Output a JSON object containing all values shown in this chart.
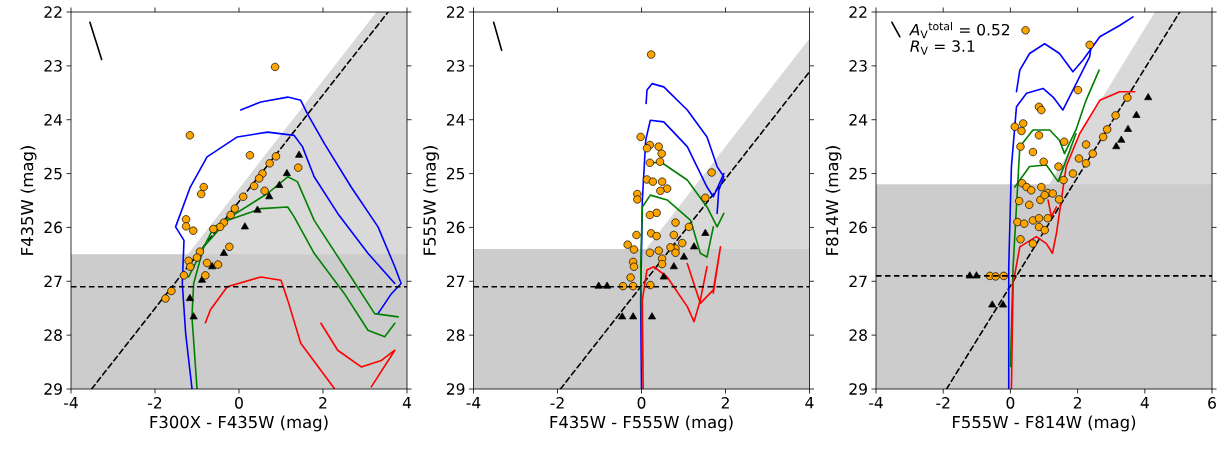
{
  "chart_data": [
    {
      "type": "scatter",
      "xlabel": "F300X - F435W (mag)",
      "ylabel": "F435W (mag)",
      "xlim": [
        -4,
        4
      ],
      "ylim": [
        29,
        22
      ],
      "xticks": [
        -4,
        -2,
        0,
        2,
        4
      ],
      "yticks": [
        22,
        23,
        24,
        25,
        26,
        27,
        28,
        29
      ],
      "bands": [
        {
          "axis": "y",
          "from": 26.5,
          "to": 29,
          "color": "#cccccc"
        }
      ],
      "ref_lines": [
        {
          "axis": "y",
          "value": 27.1,
          "color": "#000000",
          "line_style": "dashed"
        }
      ],
      "series": [
        {
          "type": "area",
          "color": "#d9d9d9",
          "x": [
            -3.71,
            3.27,
            4,
            4
          ],
          "values": [
            29,
            22,
            22,
            29
          ]
        },
        {
          "type": "line",
          "color": "#000000",
          "line_style": "dashed",
          "x": [
            -3.51,
            3.55
          ],
          "values": [
            29,
            22
          ]
        },
        {
          "type": "line",
          "color": "#000000",
          "x": [
            -3.55,
            -3.27
          ],
          "values": [
            22.19,
            22.88
          ]
        },
        {
          "type": "line",
          "color": "#0000ff",
          "x": [
            0.04,
            0.52,
            1.16,
            1.47,
            1.63,
            2.03,
            2.67,
            3.31,
            3.71,
            3.86,
            3.63,
            3.31
          ],
          "values": [
            23.82,
            23.67,
            23.58,
            23.64,
            23.89,
            24.44,
            25.25,
            25.99,
            26.73,
            27.04,
            27.23,
            27.6
          ]
        },
        {
          "type": "line",
          "color": "#0000ff",
          "x": [
            -1.12,
            -1.27,
            -1.35,
            -1.31,
            -1.51,
            -1.16,
            -0.76,
            -0.04,
            0.68,
            1.31,
            1.51,
            1.79,
            2.35,
            3.07,
            3.71
          ],
          "values": [
            28.99,
            27.97,
            27.04,
            26.24,
            25.99,
            25.25,
            24.69,
            24.32,
            24.23,
            24.29,
            24.5,
            25.06,
            25.74,
            26.48,
            27.04
          ]
        },
        {
          "type": "line",
          "color": "#008000",
          "x": [
            -1.0,
            -1.12,
            -1.08,
            -0.84,
            -0.28,
            0.52,
            1.16,
            1.31,
            1.79,
            2.51,
            3.07,
            3.47,
            3.71
          ],
          "values": [
            28.99,
            27.66,
            27.04,
            26.36,
            25.87,
            25.65,
            25.62,
            25.8,
            26.48,
            27.23,
            27.91,
            28.03,
            27.78
          ]
        },
        {
          "type": "line",
          "color": "#008000",
          "x": [
            -1.2,
            -0.6,
            0.68,
            1.16,
            1.39,
            1.79,
            2.51,
            3.23,
            3.79
          ],
          "values": [
            26.92,
            26.0,
            25.37,
            25.06,
            25.15,
            25.87,
            26.73,
            27.6,
            27.66
          ]
        },
        {
          "type": "line",
          "color": "#ff0000",
          "x": [
            2.27,
            1.47,
            1.16,
            1.0,
            0.52,
            -0.28,
            -0.68,
            -0.8
          ],
          "values": [
            28.99,
            28.15,
            27.35,
            26.98,
            26.92,
            27.1,
            27.53,
            27.77
          ]
        },
        {
          "type": "line",
          "color": "#ff0000",
          "x": [
            1.95,
            2.35,
            2.91,
            3.39,
            3.71,
            3.15
          ],
          "values": [
            27.78,
            28.28,
            28.59,
            28.47,
            28.28,
            28.96
          ]
        },
        {
          "type": "scatter",
          "color": "#000000",
          "marker": "triangle",
          "x": [
            1.43,
            1.14,
            0.96,
            0.72,
            0.44,
            0.14,
            -0.36,
            -0.64,
            -0.88,
            -1.08,
            -1.17
          ],
          "values": [
            24.66,
            25.0,
            25.22,
            25.43,
            25.68,
            25.99,
            26.48,
            26.73,
            26.98,
            27.66,
            27.32
          ]
        },
        {
          "type": "scatter",
          "color": "#ffa500",
          "marker": "circle",
          "x": [
            0.86,
            -1.17,
            0.26,
            0.88,
            0.73,
            1.41,
            0.56,
            0.48,
            0.36,
            0.61,
            -0.84,
            -0.9,
            0.1,
            -0.1,
            -0.2,
            -0.36,
            -0.45,
            -0.61,
            -1.26,
            -1.26,
            -1.09,
            -0.23,
            -0.93,
            -1.0,
            -1.2,
            -0.76,
            -0.5,
            -1.16,
            -1.31,
            -0.8,
            -1.61,
            -1.75
          ],
          "values": [
            23.02,
            24.29,
            24.66,
            24.68,
            24.81,
            24.89,
            25.0,
            25.09,
            25.23,
            25.32,
            25.25,
            25.38,
            25.43,
            25.65,
            25.77,
            25.91,
            25.99,
            26.03,
            25.85,
            25.98,
            26.06,
            26.36,
            26.45,
            26.56,
            26.62,
            26.66,
            26.69,
            26.73,
            26.89,
            26.89,
            27.18,
            27.32
          ]
        }
      ]
    },
    {
      "type": "scatter",
      "xlabel": "F435W - F555W (mag)",
      "ylabel": "F555W (mag)",
      "xlim": [
        -4,
        4
      ],
      "ylim": [
        29,
        22
      ],
      "xticks": [
        -4,
        -2,
        0,
        2,
        4
      ],
      "yticks": [
        22,
        23,
        24,
        25,
        26,
        27,
        28,
        29
      ],
      "bands": [
        {
          "axis": "y",
          "from": 26.4,
          "to": 29,
          "color": "#cccccc"
        }
      ],
      "ref_lines": [
        {
          "axis": "y",
          "value": 27.1,
          "color": "#000000",
          "line_style": "dashed"
        }
      ],
      "series": [
        {
          "type": "area",
          "color": "#d9d9d9",
          "x": [
            -2.48,
            4,
            4
          ],
          "values": [
            29,
            22.49,
            29
          ]
        },
        {
          "type": "line",
          "color": "#000000",
          "line_style": "dashed",
          "x": [
            -1.93,
            4
          ],
          "values": [
            29,
            23.11
          ]
        },
        {
          "type": "line",
          "color": "#000000",
          "x": [
            -3.52,
            -3.33
          ],
          "values": [
            22.19,
            22.71
          ]
        },
        {
          "type": "line",
          "color": "#0000ff",
          "x": [
            0.11,
            0.13,
            0.25,
            0.53,
            1.09,
            1.56,
            1.8,
            1.96,
            1.84,
            1.8
          ],
          "values": [
            23.7,
            23.45,
            23.33,
            23.39,
            23.82,
            24.32,
            24.87,
            25.06,
            25.31,
            25.74
          ]
        },
        {
          "type": "line",
          "color": "#0000ff",
          "x": [
            0,
            -0.02,
            0.02,
            0.1,
            0.21,
            0.53,
            1.09,
            1.56,
            1.71,
            1.96
          ],
          "values": [
            29,
            27.35,
            25.49,
            24.38,
            24.01,
            24.04,
            24.5,
            25.25,
            25.43,
            25.0
          ]
        },
        {
          "type": "line",
          "color": "#008000",
          "x": [
            0.21,
            0.45,
            1.09,
            1.56,
            1.8,
            1.96
          ],
          "values": [
            24.81,
            24.78,
            25.12,
            25.62,
            25.99,
            25.74
          ]
        },
        {
          "type": "line",
          "color": "#008000",
          "x": [
            0.02,
            -0.02,
            0.02,
            0.21,
            0.61,
            1.17,
            1.4,
            1.56,
            1.71
          ],
          "values": [
            28.58,
            26.73,
            25.62,
            25.4,
            25.49,
            25.87,
            26.48,
            26.55,
            25.99
          ]
        },
        {
          "type": "line",
          "color": "#ff0000",
          "x": [
            0.04,
            0.02,
            0.13,
            0.29,
            0.61,
            1.09,
            1.25,
            1.4,
            1.56
          ],
          "values": [
            29,
            27.35,
            26.79,
            26.73,
            26.92,
            27.47,
            27.75,
            27.35,
            26.73
          ]
        },
        {
          "type": "line",
          "color": "#ff0000",
          "x": [
            1.09,
            1.4,
            1.71,
            1.88,
            1.71
          ],
          "values": [
            26.67,
            27.41,
            27.16,
            26.36,
            27.22
          ]
        },
        {
          "type": "scatter",
          "color": "#000000",
          "marker": "triangle",
          "x": [
            -1.02,
            -0.82,
            -0.46,
            -0.2,
            0.25,
            1.52,
            1.25,
            1.01,
            0.77,
            0.53
          ],
          "values": [
            27.09,
            27.09,
            27.66,
            27.66,
            27.66,
            26.11,
            26.36,
            26.55,
            26.73,
            26.92
          ]
        },
        {
          "type": "scatter",
          "color": "#ffa500",
          "marker": "circle",
          "x": [
            0.23,
            -0.02,
            0.2,
            0.41,
            0.13,
            0.48,
            0.44,
            0.2,
            1.67,
            0.13,
            0.27,
            0.49,
            0.61,
            0.45,
            -0.1,
            -0.1,
            1.52,
            0.36,
            0.2,
            0.81,
            1.13,
            -0.12,
            0.23,
            0.36,
            0.77,
            0.97,
            -0.33,
            0.81,
            -0.18,
            0.2,
            0.41,
            0.69,
            0.81,
            0.49,
            -0.2,
            -0.18,
            0.49,
            -0.26,
            -0.44,
            -0.2,
            0.21
          ],
          "values": [
            22.79,
            24.32,
            24.47,
            24.5,
            24.53,
            24.63,
            24.78,
            24.8,
            24.98,
            25.11,
            25.15,
            25.15,
            25.28,
            25.32,
            25.38,
            25.48,
            25.45,
            25.73,
            25.77,
            25.91,
            25.99,
            26.14,
            26.11,
            26.16,
            26.14,
            26.29,
            26.32,
            26.39,
            26.41,
            26.47,
            26.43,
            26.37,
            26.47,
            26.58,
            26.64,
            26.73,
            26.68,
            26.93,
            27.09,
            27.09,
            27.07
          ]
        }
      ]
    },
    {
      "type": "scatter",
      "xlabel": "F555W - F814W (mag)",
      "ylabel": "F814W (mag)",
      "xlim": [
        -4,
        6
      ],
      "ylim": [
        29,
        22
      ],
      "xticks": [
        -4,
        -2,
        0,
        2,
        4,
        6
      ],
      "yticks": [
        22,
        23,
        24,
        25,
        26,
        27,
        28,
        29
      ],
      "annotations": [
        "*A*$_{V}$$^{total}$ = 0.52",
        "*R*$_{V}$ = 3.1"
      ],
      "bands": [
        {
          "axis": "y",
          "from": 25.2,
          "to": 29,
          "color": "#cccccc"
        }
      ],
      "ref_lines": [
        {
          "axis": "y",
          "value": 26.9,
          "color": "#000000",
          "line_style": "dashed"
        }
      ],
      "series": [
        {
          "type": "area",
          "color": "#d9d9d9",
          "x": [
            -2.59,
            4.3,
            6,
            6
          ],
          "values": [
            29,
            22,
            22,
            29
          ]
        },
        {
          "type": "line",
          "color": "#000000",
          "line_style": "dashed",
          "x": [
            -1.9,
            5.04
          ],
          "values": [
            29,
            22
          ]
        },
        {
          "type": "line",
          "color": "#000000",
          "x": [
            -3.53,
            -3.29
          ],
          "values": [
            22.19,
            22.46
          ]
        },
        {
          "type": "line",
          "color": "#0000ff",
          "x": [
            0.18,
            0.28,
            0.57,
            1.02,
            1.46,
            1.86,
            2.16,
            2.66,
            3.25,
            3.65
          ],
          "values": [
            23.48,
            23.08,
            22.77,
            22.59,
            22.77,
            23.11,
            22.89,
            22.46,
            22.25,
            22.09
          ]
        },
        {
          "type": "line",
          "color": "#0000ff",
          "x": [
            -0.05,
            -0.05,
            0.03,
            0.18,
            0.48,
            0.97,
            1.27,
            1.56,
            1.86,
            2.36,
            2.41
          ],
          "values": [
            29,
            26.73,
            24.87,
            23.76,
            23.51,
            23.42,
            23.58,
            23.82,
            23.45,
            22.83,
            22.59
          ]
        },
        {
          "type": "line",
          "color": "#008000",
          "x": [
            0,
            0.08,
            0.28,
            0.67,
            1.17,
            1.46,
            1.61,
            1.95,
            2.25,
            2.64
          ],
          "values": [
            28.58,
            26.73,
            24.5,
            24.19,
            24.19,
            24.38,
            24.63,
            24.19,
            23.64,
            23.08
          ]
        },
        {
          "type": "line",
          "color": "#008000",
          "x": [
            0.13,
            0.57,
            1.07,
            1.42,
            1.66,
            1.95
          ],
          "values": [
            25.25,
            24.87,
            24.84,
            25.15,
            24.75,
            24.26
          ]
        },
        {
          "type": "line",
          "color": "#ff0000",
          "x": [
            0.03,
            0.08,
            0.28,
            0.77,
            1.07,
            1.25,
            1.37,
            1.66,
            2.06,
            2.66,
            3.25,
            3.7
          ],
          "values": [
            29,
            27.04,
            26.36,
            26.17,
            26.3,
            26.48,
            26.11,
            24.87,
            24.26,
            23.64,
            23.48,
            23.48
          ]
        },
        {
          "type": "line",
          "color": "#ff0000",
          "x": [
            1.12,
            1.22,
            1.37
          ],
          "values": [
            25.49,
            25.8,
            25.62
          ]
        },
        {
          "type": "scatter",
          "color": "#000000",
          "marker": "triangle",
          "x": [
            -1.21,
            -1.01,
            -0.54,
            -0.22,
            4.1,
            3.75,
            3.5,
            3.3,
            3.15
          ],
          "values": [
            26.9,
            26.9,
            27.44,
            27.44,
            23.59,
            23.92,
            24.18,
            24.38,
            24.5
          ]
        },
        {
          "type": "scatter",
          "color": "#ffa500",
          "marker": "circle",
          "x": [
            0.45,
            2.36,
            2.01,
            3.48,
            3.13,
            0.85,
            0.92,
            0.38,
            0.33,
            0.13,
            2.88,
            2.76,
            0.85,
            1.6,
            2.25,
            2.45,
            0.3,
            0.67,
            0.99,
            2.04,
            2.25,
            1.43,
            1.86,
            1.58,
            0.35,
            0.48,
            0.62,
            0.92,
            1.11,
            1.26,
            1.45,
            0.26,
            0.56,
            0.89,
            1.02,
            0.67,
            0.85,
            1.11,
            0.21,
            0.41,
            0.85,
            1.02,
            0.3,
            0.67,
            -0.61,
            -0.44,
            -0.2
          ],
          "values": [
            22.34,
            22.61,
            23.45,
            23.59,
            23.92,
            23.76,
            23.82,
            24.07,
            24.21,
            24.13,
            24.18,
            24.32,
            24.29,
            24.41,
            24.46,
            24.63,
            24.5,
            24.6,
            24.78,
            24.72,
            24.81,
            24.87,
            25.0,
            25.12,
            25.18,
            25.25,
            25.31,
            25.25,
            25.36,
            25.37,
            25.48,
            25.51,
            25.58,
            25.49,
            25.4,
            25.87,
            25.83,
            25.83,
            25.9,
            25.93,
            25.99,
            26.05,
            26.22,
            26.3,
            26.9,
            26.91,
            26.9
          ]
        }
      ]
    }
  ]
}
